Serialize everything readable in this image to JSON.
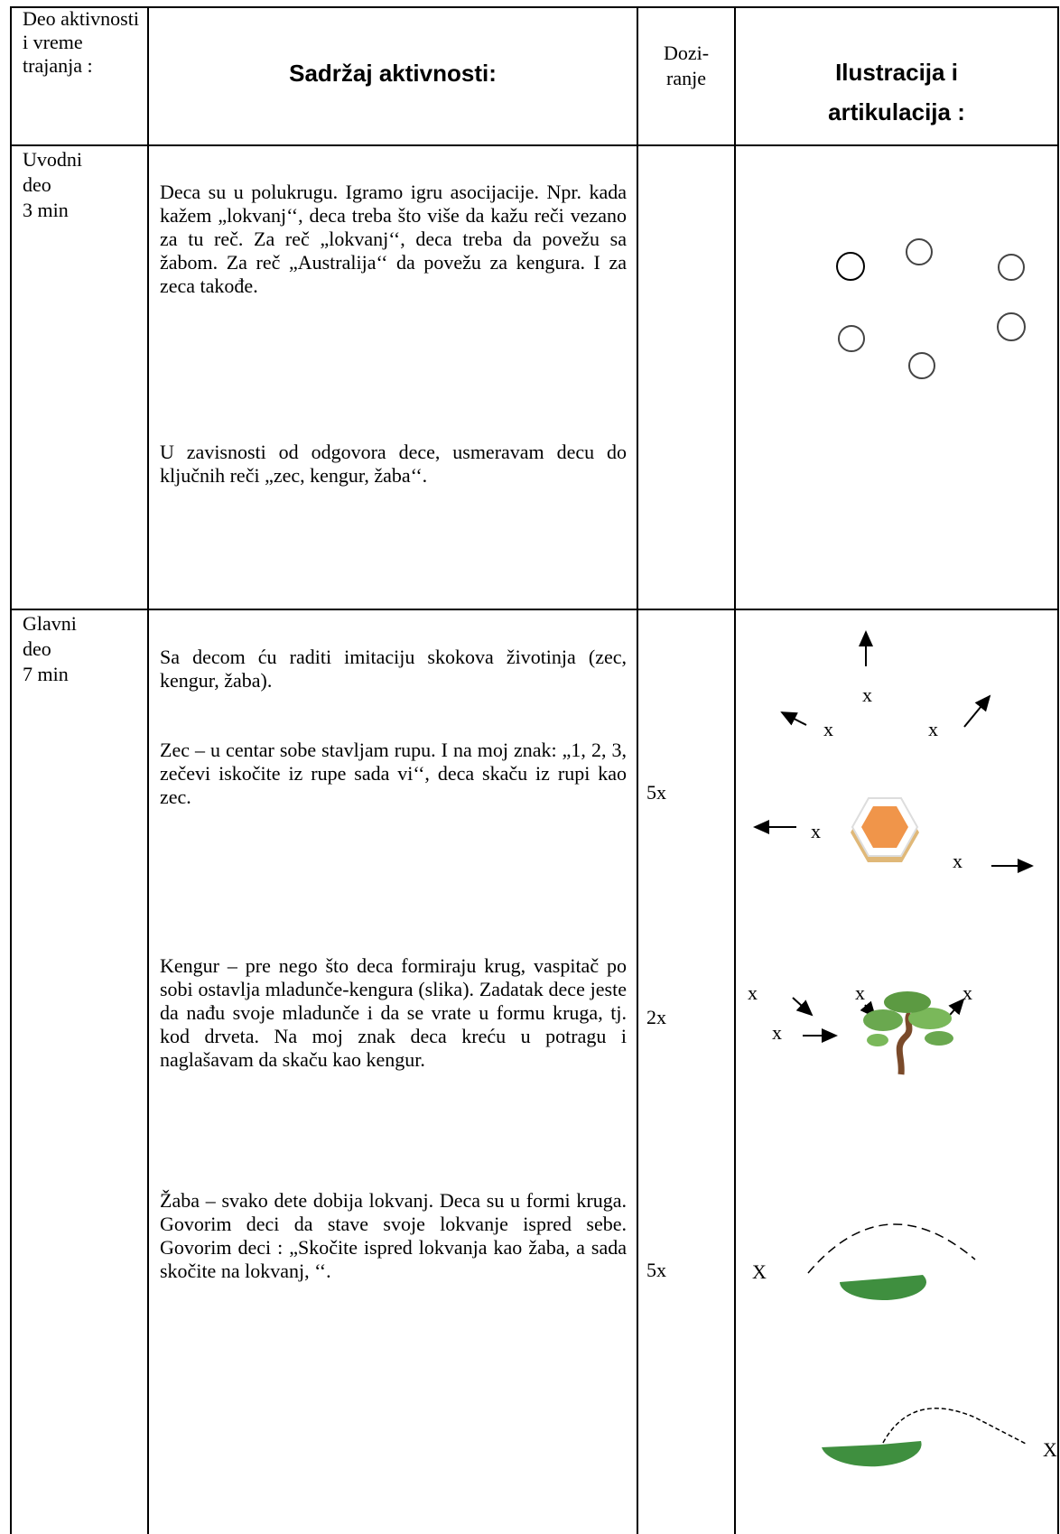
{
  "table": {
    "header": {
      "activity_part": "Deo aktivnosti i vreme trajanja :",
      "content": "Sadržaj aktivnosti:",
      "dosage": [
        "Dozi-",
        "ranje"
      ],
      "illustration": [
        "Ilustracija i",
        "artikulacija :"
      ]
    },
    "rows": [
      {
        "part": [
          "Uvodni",
          "deo",
          "3 min"
        ],
        "paragraphs": [
          "Deca su u polukrugu. Igramo igru asocijacije. Npr. kada kažem „lokvanj‘‘, deca treba što više da kažu reči vezano za tu reč. Za reč „lokvanj‘‘, deca treba da povežu sa žabom. Za reč „Australija‘‘ da povežu za kengura. I za zeca takođe.",
          "U zavisnosti od odgovora dece, usmeravam decu do ključnih reči „zec, kengur, žaba‘‘."
        ]
      },
      {
        "part": [
          "Glavni",
          "deo",
          "7 min"
        ],
        "paragraphs": [
          "Sa decom ću raditi imitaciju skokova životinja (zec, kengur, žaba).",
          "Zec – u centar sobe stavljam rupu. I na moj znak: „1, 2, 3, zečevi iskočite iz rupe sada vi‘‘, deca skaču iz rupi kao zec.",
          "Kengur – pre nego što deca formiraju krug, vaspitač po sobi ostavlja mladunče-kengura (slika). Zadatak dece jeste da nađu svoje mladunče i da se vrate u formu kruga, tj. kod drveta. Na moj znak deca kreću u potragu i naglašavam da skaču kao kengur.",
          "Žaba – svako dete dobija lokvanj. Deca su u formi kruga. Govorim deci da stave svoje lokvanje ispred sebe. Govorim deci : „Skočite ispred lokvanja kao žaba, a sada skočite na lokvanj, ‘‘."
        ],
        "dosage": [
          "5x",
          "2x",
          "5x"
        ],
        "illustration_labels": [
          "x",
          "x",
          "x",
          "x",
          "x",
          "x",
          "x",
          "x",
          "x",
          "X",
          "X"
        ]
      }
    ]
  }
}
